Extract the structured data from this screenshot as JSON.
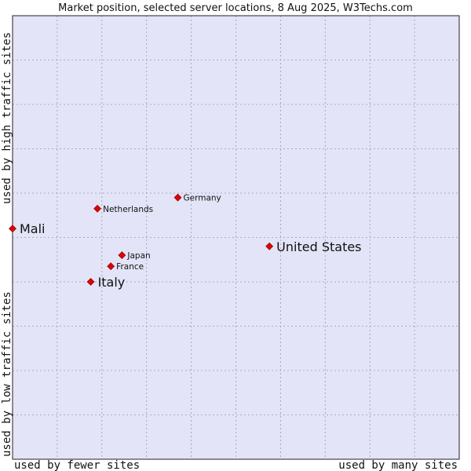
{
  "chart_data": {
    "type": "scatter",
    "title": "Market position, selected server locations, 8 Aug 2025, W3Techs.com",
    "xlabel_low": "used by fewer sites",
    "xlabel_high": "used by many sites",
    "ylabel_low": "used by low traffic sites",
    "ylabel_high": "used by high traffic sites",
    "xlim": [
      0,
      10
    ],
    "ylim": [
      0,
      10
    ],
    "grid": true,
    "points": [
      {
        "label": "Germany",
        "x": 3.7,
        "y": 5.9,
        "emphasis": false
      },
      {
        "label": "Netherlands",
        "x": 1.9,
        "y": 5.65,
        "emphasis": false
      },
      {
        "label": "Mali",
        "x": 0.0,
        "y": 5.2,
        "emphasis": true
      },
      {
        "label": "United States",
        "x": 5.75,
        "y": 4.8,
        "emphasis": true
      },
      {
        "label": "Japan",
        "x": 2.45,
        "y": 4.6,
        "emphasis": false
      },
      {
        "label": "France",
        "x": 2.2,
        "y": 4.35,
        "emphasis": false
      },
      {
        "label": "Italy",
        "x": 1.75,
        "y": 4.0,
        "emphasis": true
      }
    ]
  },
  "colors": {
    "plot_bg": "#e4e4f8",
    "grid": "#9a9aac",
    "border": "#222222",
    "marker": "#e00000"
  }
}
